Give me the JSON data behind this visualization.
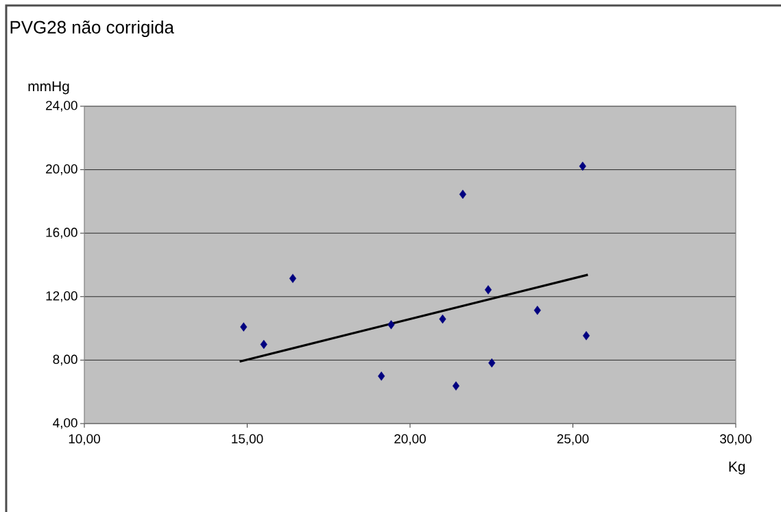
{
  "chart_data": {
    "type": "scatter",
    "title": "PVG28 não corrigida",
    "xlabel": "Kg",
    "ylabel": "mmHg",
    "xlim": [
      10,
      30
    ],
    "ylim": [
      4,
      24
    ],
    "xticks": [
      {
        "value": 10,
        "label": "10,00"
      },
      {
        "value": 15,
        "label": "15,00"
      },
      {
        "value": 20,
        "label": "20,00"
      },
      {
        "value": 25,
        "label": "25,00"
      },
      {
        "value": 30,
        "label": "30,00"
      }
    ],
    "yticks": [
      {
        "value": 4,
        "label": "4,00"
      },
      {
        "value": 8,
        "label": "8,00"
      },
      {
        "value": 12,
        "label": "12,00"
      },
      {
        "value": 16,
        "label": "16,00"
      },
      {
        "value": 20,
        "label": "20,00"
      },
      {
        "value": 24,
        "label": "24,00"
      }
    ],
    "grid": "y",
    "marker": "diamond",
    "series": [
      {
        "color": "#000080",
        "x": [
          14.89,
          15.51,
          16.4,
          19.12,
          19.42,
          21.0,
          21.41,
          21.62,
          22.4,
          22.51,
          23.91,
          25.3,
          25.41
        ],
        "values": [
          10.09,
          8.99,
          13.15,
          6.99,
          10.23,
          10.59,
          6.37,
          18.45,
          12.43,
          7.82,
          11.14,
          20.22,
          9.54
        ]
      },
      {
        "type": "line",
        "color": "#000000",
        "x": [
          14.77,
          25.46
        ],
        "values": [
          7.91,
          13.38
        ],
        "marker": "none",
        "line_style": "solid"
      }
    ]
  }
}
